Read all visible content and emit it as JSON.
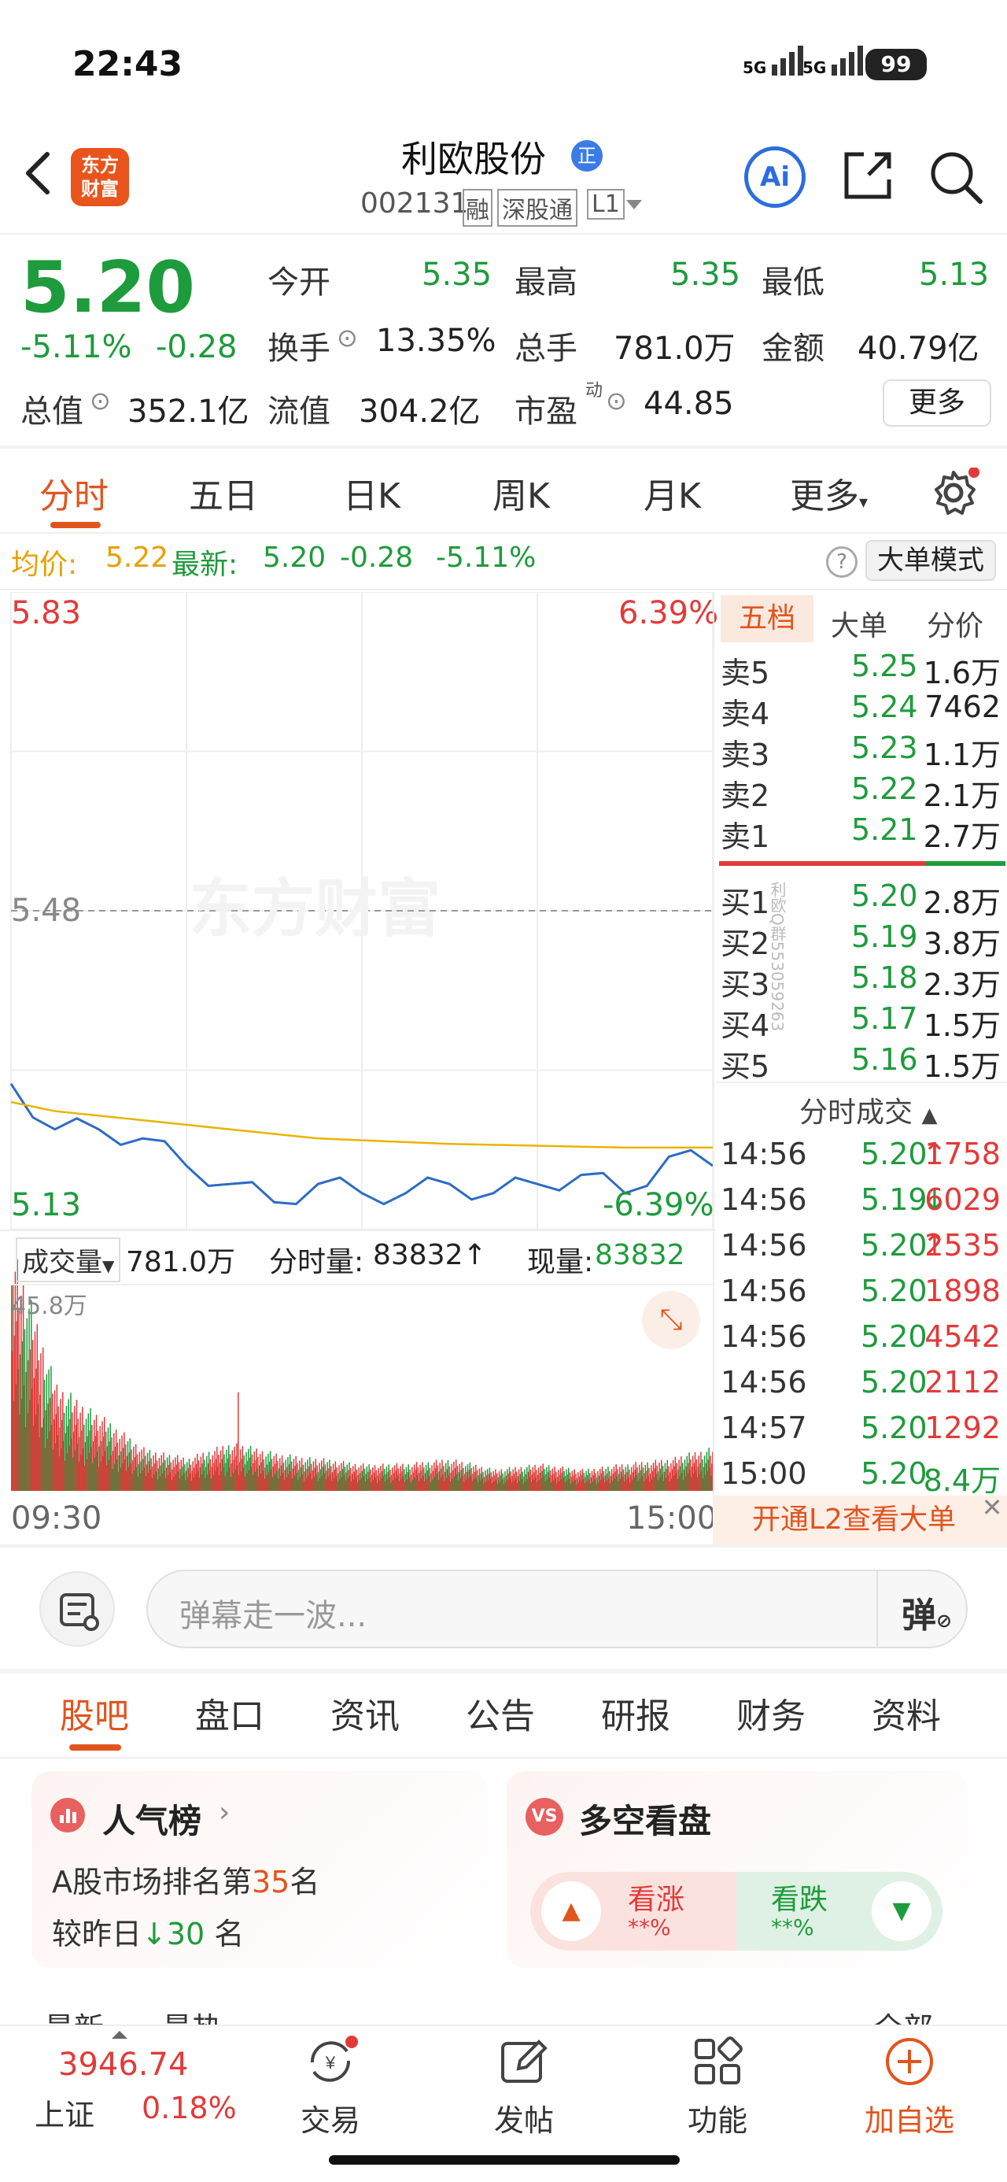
{
  "status_bar": {
    "time": "22:43",
    "signal_1": "5G",
    "signal_2": "5G",
    "battery": "99"
  },
  "header": {
    "logo_line1": "东方",
    "logo_line2": "财富",
    "stock_name": "利欧股份",
    "name_badge": "正",
    "stock_code": "002131",
    "tag_margin": "融",
    "tag_connect": "深股通",
    "tag_level": "L1",
    "ai_label": "Ai"
  },
  "quote": {
    "price": "5.20",
    "change_pct": "-5.11%",
    "change_amt": "-0.28",
    "open_label": "今开",
    "open": "5.35",
    "high_label": "最高",
    "high": "5.35",
    "low_label": "最低",
    "low": "5.13",
    "turnover_label": "换手",
    "turnover": "13.35%",
    "volume_label": "总手",
    "volume": "781.0万",
    "amount_label": "金额",
    "amount": "40.79亿",
    "mktcap_label": "总值",
    "mktcap": "352.1亿",
    "float_label": "流值",
    "float_cap": "304.2亿",
    "pe_label": "市盈",
    "pe_super": "动",
    "pe": "44.85",
    "more_btn": "更多"
  },
  "chart_tabs": [
    "分时",
    "五日",
    "日K",
    "周K",
    "月K",
    "更多"
  ],
  "avg_row": {
    "avg_label": "均价:",
    "avg": "5.22",
    "latest_label": "最新:",
    "latest": "5.20",
    "change_amt": "-0.28",
    "change_pct": "-5.11%",
    "mode_btn": "大单模式"
  },
  "chart_labels": {
    "y_top": "5.83",
    "y_top_pct": "6.39%",
    "y_mid": "5.48",
    "y_bottom": "5.13",
    "y_bottom_pct": "-6.39%",
    "watermark": "东方财富",
    "vol_label": "成交量",
    "vol_total": "781.0万",
    "vol_detail_label": "分时量:",
    "vol_detail": "83832",
    "vol_now_label": "现量:",
    "vol_now": "83832",
    "vol_max": "45.8万",
    "x_start": "09:30",
    "x_end": "15:00"
  },
  "chart_data": {
    "type": "line",
    "x": [
      "09:30",
      "09:45",
      "10:00",
      "10:15",
      "10:30",
      "10:45",
      "11:00",
      "11:15",
      "11:30",
      "13:15",
      "13:30",
      "13:45",
      "14:00",
      "14:15",
      "14:30",
      "14:45",
      "15:00"
    ],
    "series": [
      {
        "name": "最新",
        "values": [
          5.29,
          5.24,
          5.24,
          5.23,
          5.2,
          5.18,
          5.16,
          5.18,
          5.17,
          5.17,
          5.18,
          5.17,
          5.18,
          5.19,
          5.17,
          5.21,
          5.2
        ]
      },
      {
        "name": "均价",
        "values": [
          5.27,
          5.26,
          5.255,
          5.25,
          5.245,
          5.24,
          5.235,
          5.23,
          5.228,
          5.226,
          5.224,
          5.223,
          5.222,
          5.221,
          5.22,
          5.22,
          5.22
        ]
      }
    ],
    "ylim": [
      5.13,
      5.83
    ],
    "volume": [
      46,
      20,
      14,
      8,
      6,
      9,
      7,
      6,
      5,
      5,
      6,
      4,
      5,
      4,
      5,
      6,
      8
    ]
  },
  "orderbook": {
    "tabs": [
      "五档",
      "大单",
      "分价"
    ],
    "asks": [
      {
        "label": "卖5",
        "price": "5.25",
        "vol": "1.6万"
      },
      {
        "label": "卖4",
        "price": "5.24",
        "vol": "7462"
      },
      {
        "label": "卖3",
        "price": "5.23",
        "vol": "1.1万"
      },
      {
        "label": "卖2",
        "price": "5.22",
        "vol": "2.1万"
      },
      {
        "label": "卖1",
        "price": "5.21",
        "vol": "2.7万"
      }
    ],
    "bids": [
      {
        "label": "买1",
        "price": "5.20",
        "vol": "2.8万"
      },
      {
        "label": "买2",
        "price": "5.19",
        "vol": "3.8万"
      },
      {
        "label": "买3",
        "price": "5.18",
        "vol": "2.3万"
      },
      {
        "label": "买4",
        "price": "5.17",
        "vol": "1.5万"
      },
      {
        "label": "买5",
        "price": "5.16",
        "vol": "1.5万"
      }
    ],
    "side_watermark": "利欧Q群553059263",
    "trades_header": "分时成交",
    "trades": [
      {
        "time": "14:56",
        "price": "5.20",
        "arrow": "↑",
        "vol": "1758"
      },
      {
        "time": "14:56",
        "price": "5.19",
        "arrow": "↓",
        "vol": "6029"
      },
      {
        "time": "14:56",
        "price": "5.20",
        "arrow": "↑",
        "vol": "2535"
      },
      {
        "time": "14:56",
        "price": "5.20",
        "arrow": "",
        "vol": "1898"
      },
      {
        "time": "14:56",
        "price": "5.20",
        "arrow": "",
        "vol": "4542"
      },
      {
        "time": "14:56",
        "price": "5.20",
        "arrow": "",
        "vol": "2112"
      },
      {
        "time": "14:57",
        "price": "5.20",
        "arrow": "",
        "vol": "1292"
      },
      {
        "time": "15:00",
        "price": "5.20",
        "arrow": "",
        "vol": "8.4万"
      }
    ],
    "l2_banner": "开通L2查看大单"
  },
  "danmu": {
    "placeholder": "弹幕走一波...",
    "btn": "弹"
  },
  "section_tabs": [
    "股吧",
    "盘口",
    "资讯",
    "公告",
    "研报",
    "财务",
    "资料"
  ],
  "popularity": {
    "title": "人气榜",
    "rank_prefix": "A股市场排名第",
    "rank": "35",
    "rank_suffix": "名",
    "change_prefix": "较昨日",
    "change": "30",
    "change_suffix": "名"
  },
  "bull_bear": {
    "title": "多空看盘",
    "bull": "看涨",
    "bull_pct": "**%",
    "bear": "看跌",
    "bear_pct": "**%"
  },
  "subtabs_cut": [
    "最新",
    "最热",
    "全部"
  ],
  "bottom_nav": {
    "index_value": "3946.74",
    "index_name": "上证",
    "index_pct": "0.18%",
    "trade": "交易",
    "post": "发帖",
    "func": "功能",
    "add": "加自选"
  }
}
